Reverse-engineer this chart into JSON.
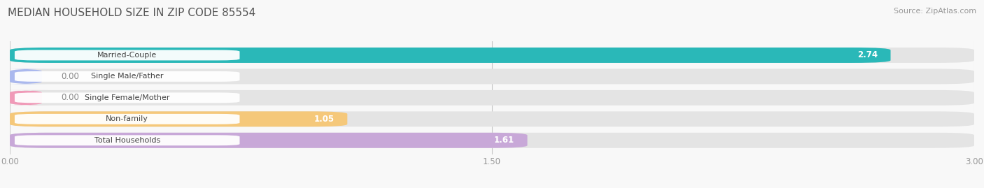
{
  "title": "MEDIAN HOUSEHOLD SIZE IN ZIP CODE 85554",
  "source": "Source: ZipAtlas.com",
  "categories": [
    "Married-Couple",
    "Single Male/Father",
    "Single Female/Mother",
    "Non-family",
    "Total Households"
  ],
  "values": [
    2.74,
    0.0,
    0.0,
    1.05,
    1.61
  ],
  "bar_colors": [
    "#2ab8b8",
    "#aab8ee",
    "#f09ab8",
    "#f5c87a",
    "#c8a8d8"
  ],
  "xlim": [
    0,
    3.0
  ],
  "xticks": [
    0.0,
    1.5,
    3.0
  ],
  "xtick_labels": [
    "0.00",
    "1.50",
    "3.00"
  ],
  "title_fontsize": 11,
  "source_fontsize": 8,
  "bar_height": 0.72,
  "background_color": "#f8f8f8",
  "bar_bg_color": "#e4e4e4"
}
